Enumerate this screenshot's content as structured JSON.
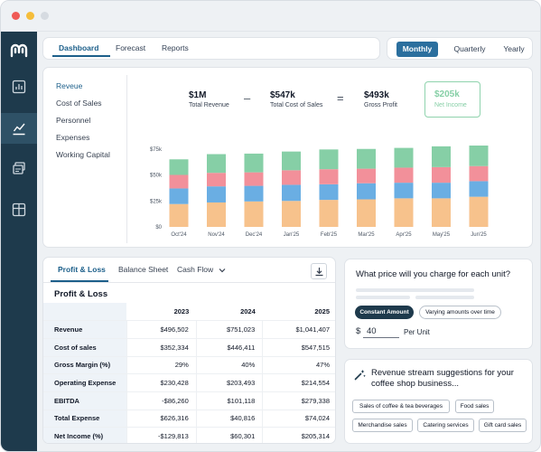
{
  "nav": {
    "tabs": [
      {
        "label": "Dashboard"
      },
      {
        "label": "Forecast"
      },
      {
        "label": "Reports"
      }
    ],
    "periods": [
      {
        "label": "Monthly"
      },
      {
        "label": "Quarterly"
      },
      {
        "label": "Yearly"
      }
    ],
    "active_period": "Monthly"
  },
  "menu": {
    "items": [
      {
        "label": "Reveue"
      },
      {
        "label": "Cost of Sales"
      },
      {
        "label": "Personnel"
      },
      {
        "label": "Expenses"
      },
      {
        "label": "Working Capital"
      }
    ]
  },
  "kpis": {
    "revenue": {
      "value": "$1M",
      "label": "Total Revenue"
    },
    "minus": "–",
    "cost": {
      "value": "$547k",
      "label": "Total Cost of Sales"
    },
    "equals": "=",
    "gross": {
      "value": "$493k",
      "label": "Gross Profit"
    },
    "net": {
      "value": "$205k",
      "label": "Net Income"
    }
  },
  "colors": {
    "accent": "#1c5f8a",
    "sidebar": "#1e3a4c",
    "series": [
      "#f7c28c",
      "#6aaee3",
      "#f2909a",
      "#86cfa6"
    ]
  },
  "chart_data": {
    "type": "bar",
    "stacked": true,
    "categories": [
      "Oct'24",
      "Nov'24",
      "Dec'24",
      "Jan'25",
      "Feb'25",
      "Mar'25",
      "Apr'25",
      "May'25",
      "Jun'25"
    ],
    "y_ticks": [
      "$0",
      "$25k",
      "$50k",
      "$75k"
    ],
    "ylim": [
      0,
      80000
    ],
    "grid": false,
    "series": [
      {
        "values": [
          22000,
          23500,
          24500,
          25000,
          26000,
          26500,
          27500,
          27500,
          29000
        ]
      },
      {
        "values": [
          15000,
          15500,
          15000,
          15500,
          15000,
          15500,
          15000,
          15000,
          15000
        ]
      },
      {
        "values": [
          13000,
          13000,
          13000,
          14000,
          14500,
          14000,
          14500,
          15000,
          14500
        ]
      },
      {
        "values": [
          15000,
          18000,
          18000,
          18000,
          19000,
          19000,
          19000,
          20000,
          21500
        ]
      }
    ]
  },
  "pl": {
    "tabs": [
      {
        "label": "Profit & Loss"
      },
      {
        "label": "Balance Sheet"
      },
      {
        "label": "Cash Flow"
      }
    ],
    "dropdown_icon": "chevron-down-icon",
    "title": "Profit & Loss",
    "years": [
      "2023",
      "2024",
      "2025"
    ],
    "rows": [
      {
        "label": "Revenue",
        "values": [
          "$496,502",
          "$751,023",
          "$1,041,407"
        ]
      },
      {
        "label": "Cost of sales",
        "values": [
          "$352,334",
          "$446,411",
          "$547,515"
        ]
      },
      {
        "label": "Gross Margin (%)",
        "values": [
          "29%",
          "40%",
          "47%"
        ]
      },
      {
        "label": "Operating Expense",
        "values": [
          "$230,428",
          "$203,493",
          "$214,554"
        ]
      },
      {
        "label": "EBITDA",
        "values": [
          "-$86,260",
          "$101,118",
          "$279,338"
        ]
      },
      {
        "label": "Total Expense",
        "values": [
          "$626,316",
          "$40,816",
          "$74,024"
        ]
      },
      {
        "label": "Net Income (%)",
        "values": [
          "-$129,813",
          "$60,301",
          "$205,314"
        ]
      }
    ]
  },
  "pricing": {
    "question": "What price will you charge for each unit?",
    "options": [
      {
        "label": "Constant Amount"
      },
      {
        "label": "Varying amounts over time"
      }
    ],
    "currency": "$",
    "value": "40",
    "unit": "Per Unit"
  },
  "revenue_streams": {
    "title": "Revenue stream suggestions for your coffee shop business...",
    "tags": [
      {
        "label": "Sales of coffee & tea beverages"
      },
      {
        "label": "Food sales"
      },
      {
        "label": "Merchandise sales"
      },
      {
        "label": "Catering services"
      },
      {
        "label": "Gift card sales"
      }
    ]
  }
}
